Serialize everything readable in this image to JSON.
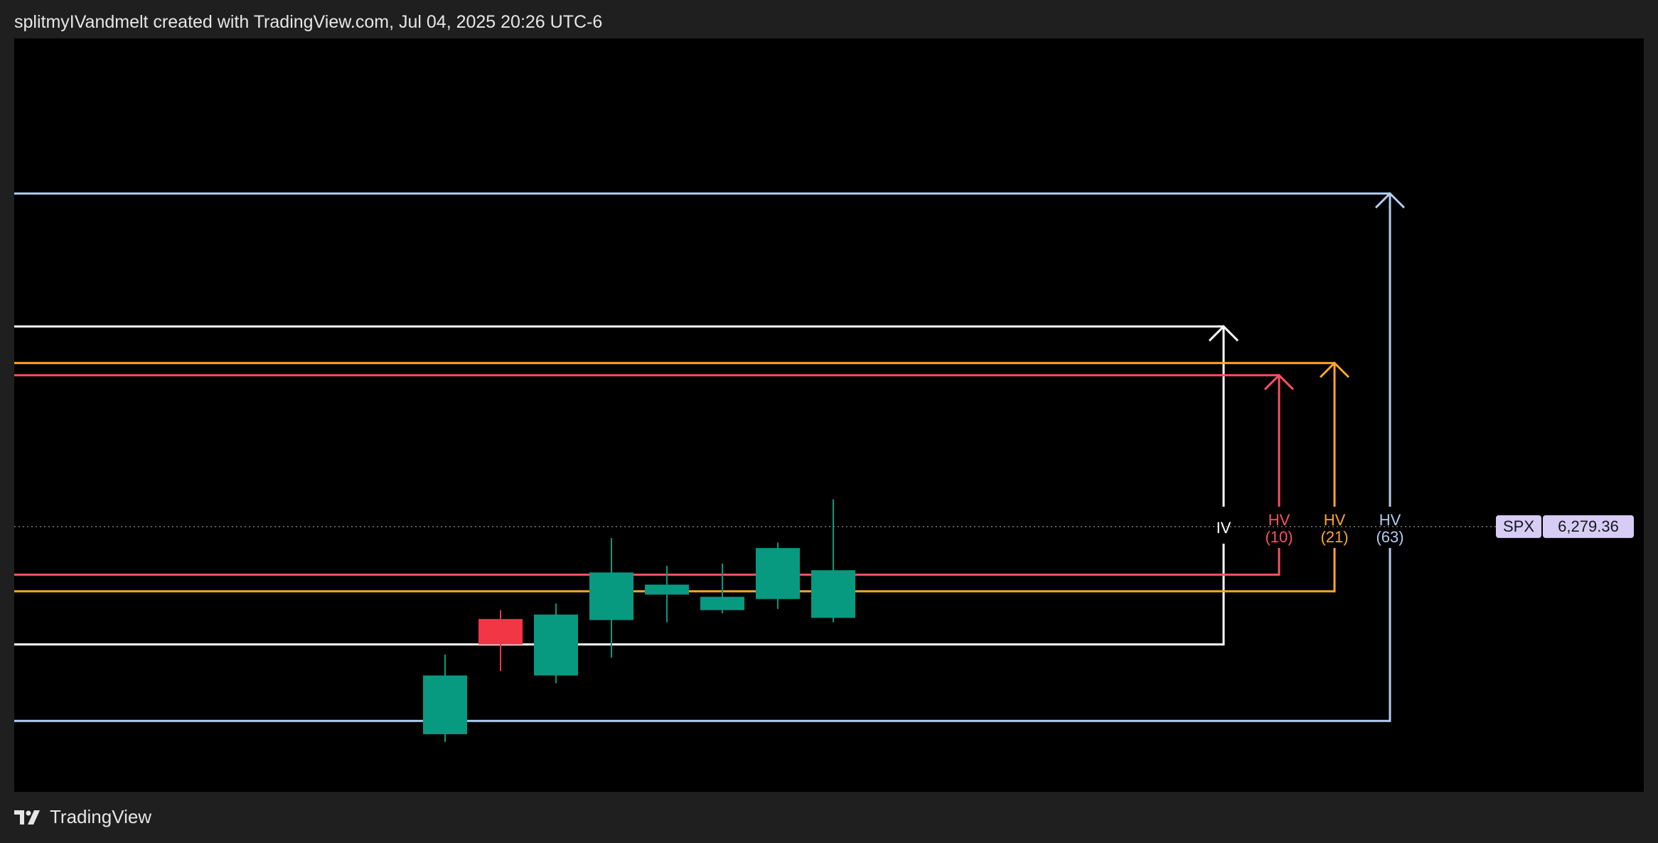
{
  "header": {
    "text": "splitmyIVandmelt created with TradingView.com, Jul 04, 2025 20:26 UTC-6"
  },
  "footer": {
    "logo_icon": "tradingview-logo-icon",
    "brand": "TradingView"
  },
  "colors": {
    "background": "#000000",
    "page": "#1f1f1f",
    "up_candle": "#089981",
    "down_candle": "#f23645",
    "iv": "#ffffff",
    "hv10": "#f7525f",
    "hv21": "#ffa726",
    "hv63": "#b2cdf0"
  },
  "chart_data": {
    "type": "candlestick",
    "symbol": "SPX",
    "last_price": "6,279.36",
    "price_value": 6279.36,
    "candles": [
      {
        "open": 6092,
        "close": 6145,
        "high": 6164,
        "low": 6085,
        "direction": "up"
      },
      {
        "open": 6196,
        "close": 6173,
        "high": 6204,
        "low": 6149,
        "direction": "down"
      },
      {
        "open": 6145,
        "close": 6200,
        "high": 6210,
        "low": 6138,
        "direction": "up"
      },
      {
        "open": 6195,
        "close": 6238,
        "high": 6269,
        "low": 6161,
        "direction": "up"
      },
      {
        "open": 6218,
        "close": 6227,
        "high": 6244,
        "low": 6193,
        "direction": "up"
      },
      {
        "open": 6204,
        "close": 6216,
        "high": 6246,
        "low": 6201,
        "direction": "up"
      },
      {
        "open": 6214,
        "close": 6260,
        "high": 6265,
        "low": 6205,
        "direction": "up"
      },
      {
        "open": 6197,
        "close": 6240,
        "high": 6304,
        "low": 6193,
        "direction": "up"
      }
    ],
    "ranges": [
      {
        "label": "IV",
        "sublabel": "",
        "upper": 6460,
        "lower": 6173,
        "color": "#ffffff"
      },
      {
        "label": "HV",
        "sublabel": "(10)",
        "upper": 6416,
        "lower": 6236,
        "color": "#f7525f"
      },
      {
        "label": "HV",
        "sublabel": "(21)",
        "upper": 6427,
        "lower": 6221,
        "color": "#ffa726"
      },
      {
        "label": "HV",
        "sublabel": "(63)",
        "upper": 6580,
        "lower": 6104,
        "color": "#b2cdf0"
      }
    ],
    "price_scale": {
      "min": 6040,
      "max": 6720
    },
    "grid": false,
    "legend": "none"
  }
}
